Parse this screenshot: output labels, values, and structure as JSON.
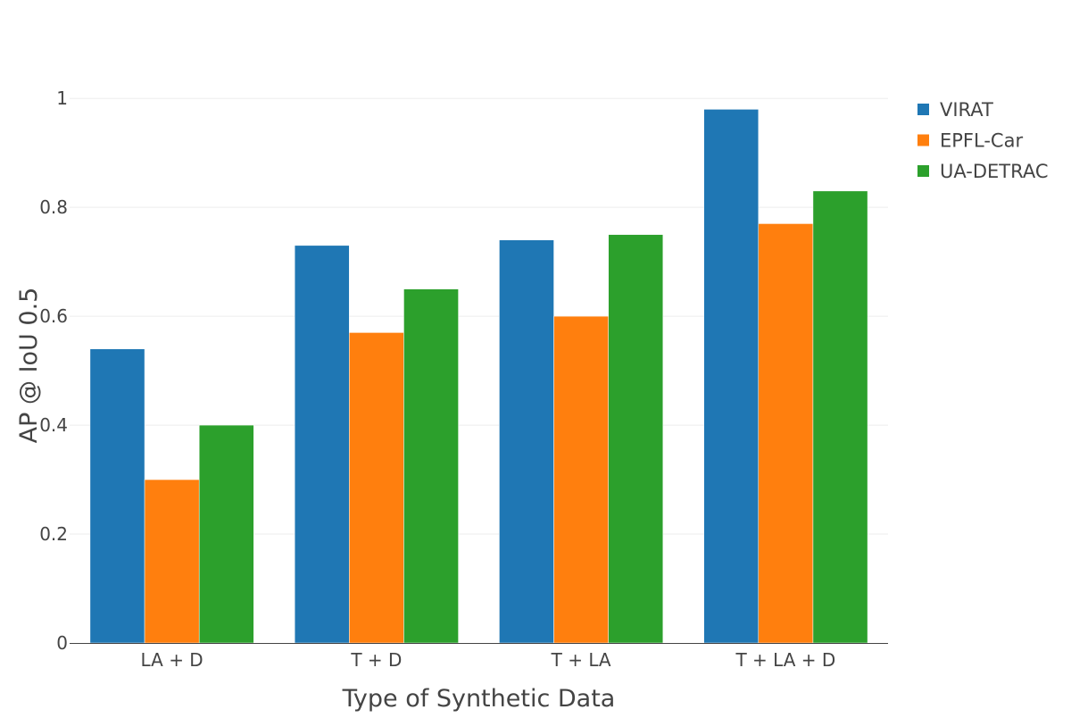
{
  "chart_data": {
    "type": "bar",
    "title": "",
    "xlabel": "Type of Synthetic Data",
    "ylabel": "AP @ IoU 0.5",
    "categories": [
      "LA + D",
      "T + D",
      "T + LA",
      "T + LA + D"
    ],
    "series": [
      {
        "name": "VIRAT",
        "color": "#1f77b4",
        "values": [
          0.54,
          0.73,
          0.74,
          0.98
        ]
      },
      {
        "name": "EPFL-Car",
        "color": "#ff7f0e",
        "values": [
          0.3,
          0.57,
          0.6,
          0.77
        ]
      },
      {
        "name": "UA-DETRAC",
        "color": "#2ca02c",
        "values": [
          0.4,
          0.65,
          0.75,
          0.83
        ]
      }
    ],
    "ylim": [
      0,
      1.02
    ],
    "yticks": [
      0,
      0.2,
      0.4,
      0.6,
      0.8,
      1
    ],
    "ytick_labels": [
      "0",
      "0.2",
      "0.4",
      "0.6",
      "0.8",
      "1"
    ],
    "grid": true,
    "legend_position": "top-right"
  }
}
